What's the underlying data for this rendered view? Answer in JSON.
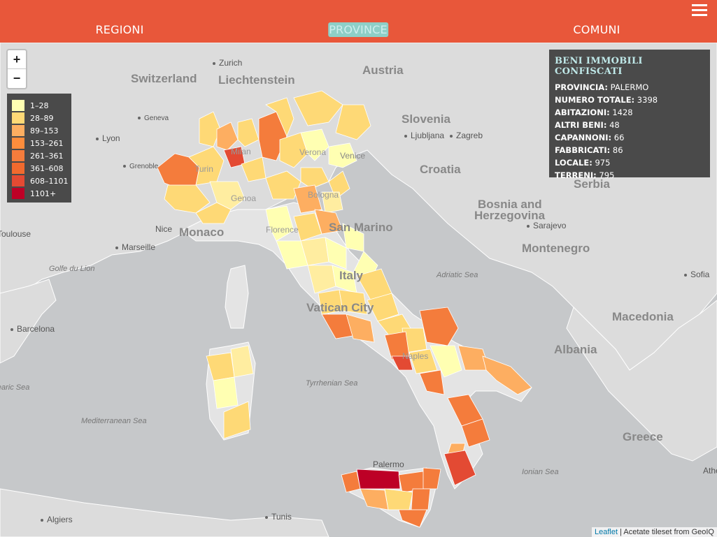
{
  "nav": {
    "items": [
      {
        "label": "REGIONI",
        "active": false
      },
      {
        "label": "PROVINCE",
        "active": true
      },
      {
        "label": "COMUNI",
        "active": false
      }
    ]
  },
  "icons": {
    "menu": "hamburger-menu-icon",
    "zoom_in": "+",
    "zoom_out": "−"
  },
  "legend": {
    "items": [
      {
        "label": "1–28",
        "color": "#ffffb2"
      },
      {
        "label": "28–89",
        "color": "#fed976"
      },
      {
        "label": "89–153",
        "color": "#fdae61"
      },
      {
        "label": "153–261",
        "color": "#fd8d3c"
      },
      {
        "label": "261–361",
        "color": "#f47c3c"
      },
      {
        "label": "361–608",
        "color": "#f16a2e"
      },
      {
        "label": "608–1101",
        "color": "#e34a33"
      },
      {
        "label": "1101+",
        "color": "#bd0026"
      }
    ]
  },
  "info": {
    "title": "BENI IMMOBILI CONFISCATI",
    "rows": [
      {
        "key": "PROVINCIA:",
        "value": "PALERMO"
      },
      {
        "key": "NUMERO TOTALE:",
        "value": "3398"
      },
      {
        "key": "ABITAZIONI:",
        "value": "1428"
      },
      {
        "key": "ALTRI BENI:",
        "value": "48"
      },
      {
        "key": "CAPANNONI:",
        "value": "66"
      },
      {
        "key": "FABBRICATI:",
        "value": "86"
      },
      {
        "key": "LOCALE:",
        "value": "975"
      },
      {
        "key": "TERRENI:",
        "value": "795"
      }
    ]
  },
  "map_labels": {
    "countries": [
      "Switzerland",
      "Liechtenstein",
      "Austria",
      "Slovenia",
      "Croatia",
      "Serbia",
      "Bosnia and",
      "Herzegovina",
      "Montenegro",
      "Macedonia",
      "Albania",
      "Greece",
      "Monaco",
      "Italy",
      "San Marino",
      "Vatican City"
    ],
    "cities": [
      "Zurich",
      "Geneva",
      "Lyon",
      "Grenoble",
      "Nice",
      "Marseille",
      "Toulouse",
      "Barcelona",
      "Algiers",
      "Tunis",
      "Palermo",
      "Ljubljana",
      "Zagreb",
      "Sarajevo",
      "Sofia",
      "Milan",
      "Turin",
      "Genoa",
      "Verona",
      "Venice",
      "Bologna",
      "Florence",
      "Naples",
      "Athens"
    ],
    "seas": [
      "Golfe du Lion",
      "Adriatic Sea",
      "Tyrrhenian Sea",
      "Mediterranean Sea",
      "Ionian Sea",
      "Balearic Sea"
    ]
  },
  "attribution": {
    "leaflet": "Leaflet",
    "tiles": " | Acetate tileset from GeoIQ"
  }
}
